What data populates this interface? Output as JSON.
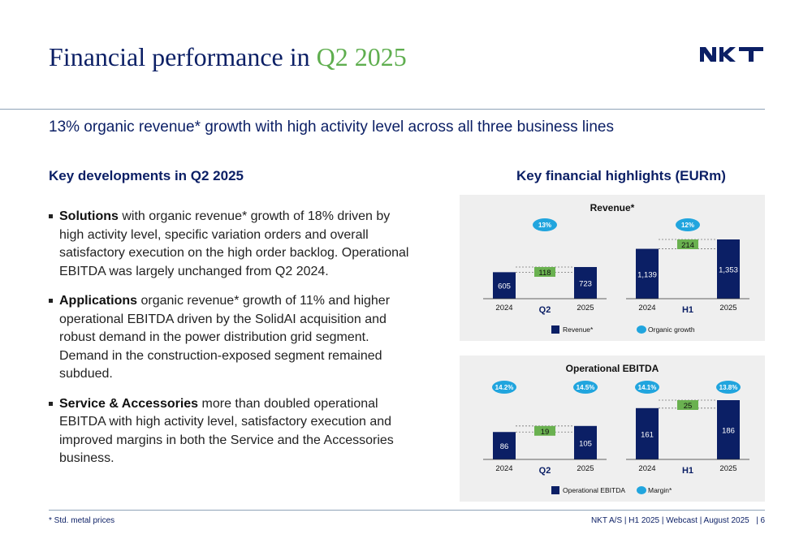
{
  "header": {
    "title_main": "Financial performance in ",
    "title_highlight": "Q2 2025",
    "logo_text": "NKT",
    "subtitle": "13% organic revenue* growth with high activity level across all three business lines"
  },
  "left": {
    "heading": "Key developments in Q2 2025",
    "bullets": [
      {
        "bold": "Solutions",
        "text": " with organic revenue* growth of 18% driven by high activity level, specific variation orders and overall satisfactory execution on the high order backlog. Operational EBITDA was largely unchanged from Q2 2024."
      },
      {
        "bold": "Applications",
        "text": " organic revenue* growth of 11% and higher operational EBITDA driven by the SolidAI acquisition and robust demand in the power distribution grid segment. Demand in the construction-exposed segment remained subdued."
      },
      {
        "bold": "Service & Accessories",
        "text": " more than doubled operational EBITDA with high activity level, satisfactory execution and improved margins in both the Service and the Accessories business."
      }
    ]
  },
  "right": {
    "heading": "Key financial highlights (EURm)"
  },
  "chart_data": [
    {
      "type": "bar",
      "title": "Revenue*",
      "colors": {
        "base": "#0b1f65",
        "bridge": "#6ab150",
        "bubble": "#21a5de"
      },
      "ylim": [
        0,
        1353
      ],
      "groups": [
        {
          "label": "Q2",
          "categories": [
            "2024",
            "2025"
          ],
          "values": [
            605,
            723
          ],
          "value_labels": [
            "605",
            "723"
          ],
          "bridge": 118,
          "bridge_label": "118",
          "bubbles": [
            "13%"
          ]
        },
        {
          "label": "H1",
          "categories": [
            "2024",
            "2025"
          ],
          "values": [
            1139,
            1353
          ],
          "value_labels": [
            "1,139",
            "1,353"
          ],
          "bridge": 214,
          "bridge_label": "214",
          "bubbles": [
            "12%"
          ]
        }
      ],
      "legend": [
        {
          "label": "Revenue*",
          "shape": "square",
          "color": "#0b1f65"
        },
        {
          "label": "Organic growth",
          "shape": "ellipse",
          "color": "#21a5de"
        }
      ]
    },
    {
      "type": "bar",
      "title": "Operational EBITDA",
      "colors": {
        "base": "#0b1f65",
        "bridge": "#6ab150",
        "bubble": "#21a5de"
      },
      "ylim": [
        0,
        186
      ],
      "groups": [
        {
          "label": "Q2",
          "categories": [
            "2024",
            "2025"
          ],
          "values": [
            86,
            105
          ],
          "value_labels": [
            "86",
            "105"
          ],
          "bridge": 19,
          "bridge_label": "19",
          "bubbles": [
            "14.2%",
            "14.5%"
          ]
        },
        {
          "label": "H1",
          "categories": [
            "2024",
            "2025"
          ],
          "values": [
            161,
            186
          ],
          "value_labels": [
            "161",
            "186"
          ],
          "bridge": 25,
          "bridge_label": "25",
          "bubbles": [
            "14.1%",
            "13.8%"
          ]
        }
      ],
      "legend": [
        {
          "label": "Operational EBITDA",
          "shape": "square",
          "color": "#0b1f65"
        },
        {
          "label": "Margin*",
          "shape": "ellipse",
          "color": "#21a5de"
        }
      ]
    }
  ],
  "footer": {
    "note": "* Std. metal prices",
    "right": "NKT A/S | H1 2025 | Webcast | August 2025",
    "page": "| 6"
  }
}
